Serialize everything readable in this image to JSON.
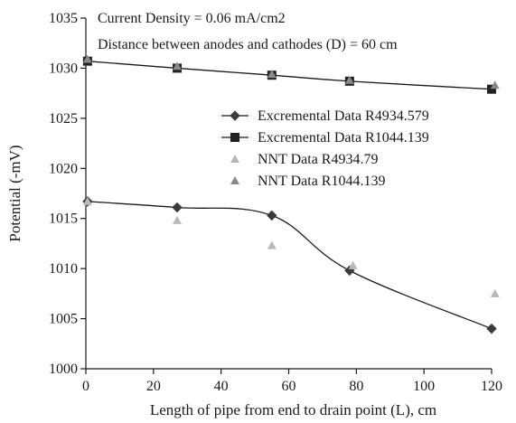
{
  "chart_data": {
    "type": "line",
    "annotations": [
      "Current Density = 0.06 mA/cm2",
      "Distance between anodes and cathodes (D) = 60 cm"
    ],
    "xlabel": "Length of pipe from end to drain point (L), cm",
    "ylabel": "Potential (-mV)",
    "xlim": [
      0,
      120
    ],
    "ylim": [
      1000,
      1035
    ],
    "xticks": [
      "0",
      "20",
      "40",
      "60",
      "80",
      "100",
      "120"
    ],
    "yticks": [
      "1000",
      "1005",
      "1010",
      "1015",
      "1020",
      "1025",
      "1030",
      "1035"
    ],
    "grid": false,
    "legend_position": "right",
    "series": [
      {
        "name": "Excremental Data R4934.579",
        "kind": "line-markers",
        "marker": "diamond",
        "color": "#3a3a3a",
        "points": [
          [
            0.5,
            1016.7
          ],
          [
            27,
            1016.1
          ],
          [
            55,
            1015.3
          ],
          [
            78,
            1009.8
          ],
          [
            120,
            1004.0
          ]
        ]
      },
      {
        "name": "Excremental Data R1044.139",
        "kind": "line-markers",
        "marker": "square",
        "color": "#222222",
        "points": [
          [
            0.5,
            1030.7
          ],
          [
            27,
            1030.0
          ],
          [
            55,
            1029.3
          ],
          [
            78,
            1028.7
          ],
          [
            120,
            1027.9
          ]
        ]
      },
      {
        "name": "NNT Data R4934.79",
        "kind": "markers",
        "marker": "triangle",
        "color": "#b8b8b8",
        "points": [
          [
            0.5,
            1016.7
          ],
          [
            27,
            1014.8
          ],
          [
            55,
            1012.3
          ],
          [
            79,
            1010.3
          ],
          [
            121,
            1007.5
          ]
        ]
      },
      {
        "name": "NNT Data R1044.139",
        "kind": "markers",
        "marker": "triangle",
        "color": "#8a8a8a",
        "points": [
          [
            0.5,
            1030.9
          ],
          [
            27,
            1030.2
          ],
          [
            55,
            1029.4
          ],
          [
            78,
            1028.8
          ],
          [
            121,
            1028.3
          ]
        ]
      }
    ]
  }
}
